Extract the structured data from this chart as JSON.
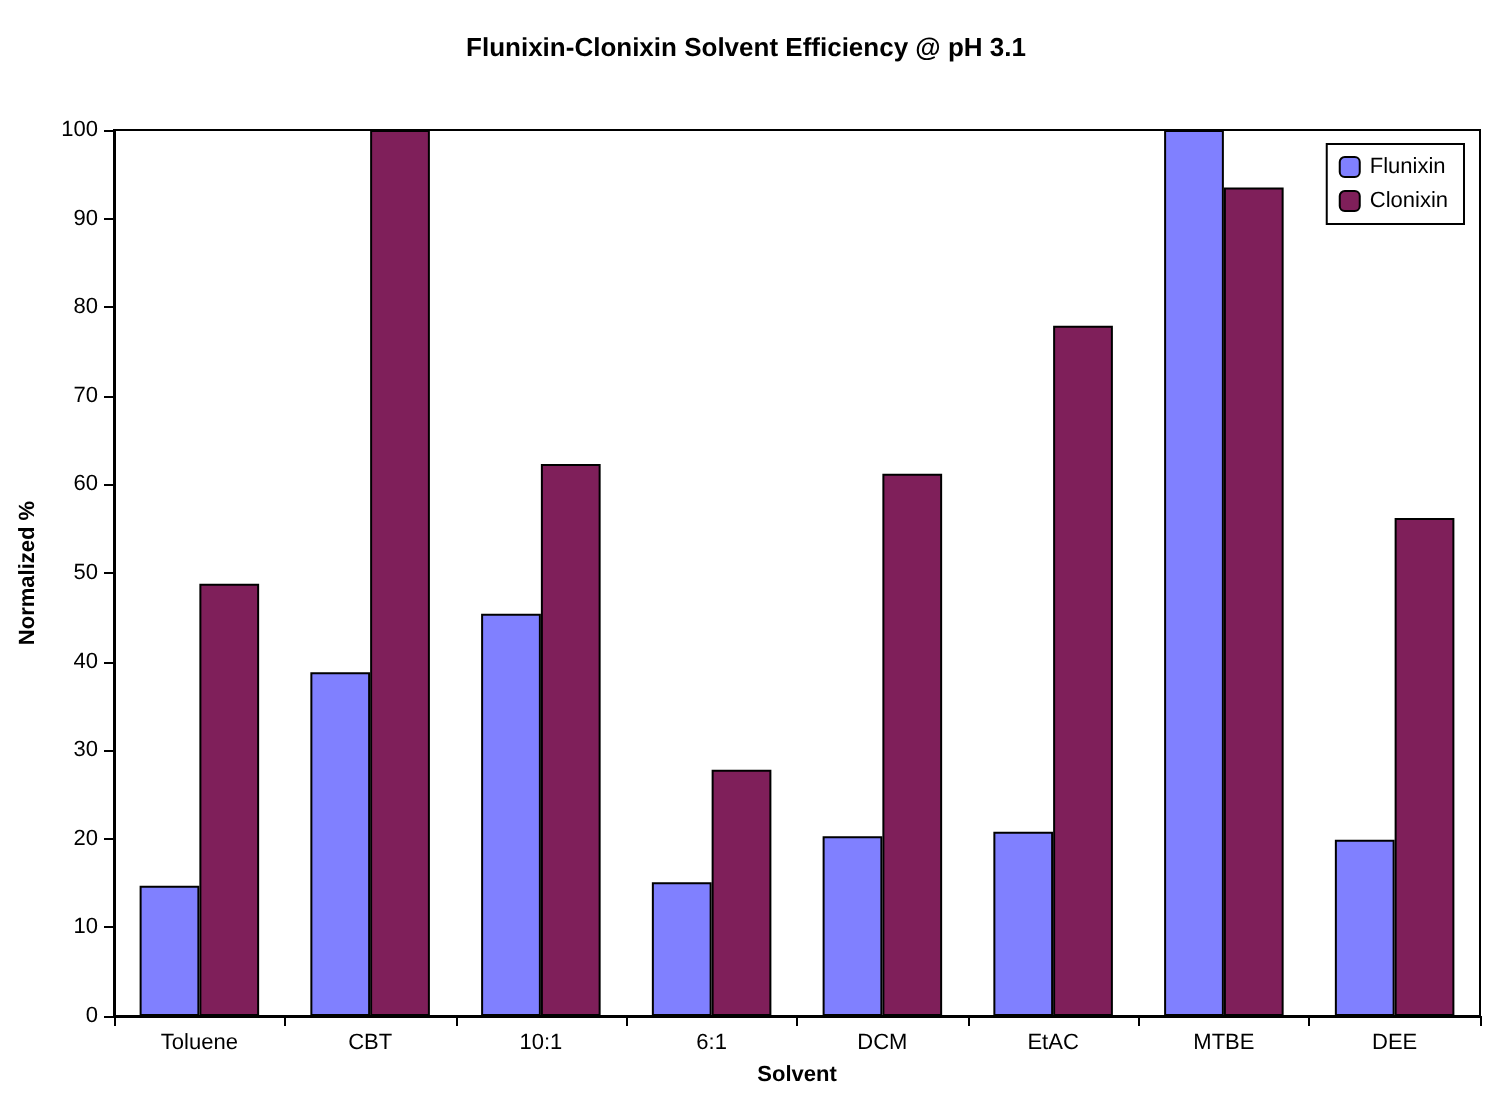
{
  "chart_data": {
    "type": "bar",
    "title": "Flunixin-Clonixin Solvent Efficiency @ pH 3.1",
    "xlabel": "Solvent",
    "ylabel": "Normalized %",
    "categories": [
      "Toluene",
      "CBT",
      "10:1",
      "6:1",
      "DCM",
      "EtAC",
      "MTBE",
      "DEE"
    ],
    "series": [
      {
        "name": "Flunixin",
        "color": "#8080ff",
        "values": [
          14.7,
          38.8,
          45.4,
          15.1,
          20.3,
          20.8,
          100,
          19.9
        ]
      },
      {
        "name": "Clonixin",
        "color": "#7f1f5a",
        "values": [
          48.8,
          100,
          62.3,
          27.8,
          61.2,
          77.9,
          93.5,
          56.2
        ]
      }
    ],
    "ylim": [
      0,
      100
    ],
    "yticks": [
      0,
      10,
      20,
      30,
      40,
      50,
      60,
      70,
      80,
      90,
      100
    ],
    "grid": false,
    "legend": "top right"
  }
}
